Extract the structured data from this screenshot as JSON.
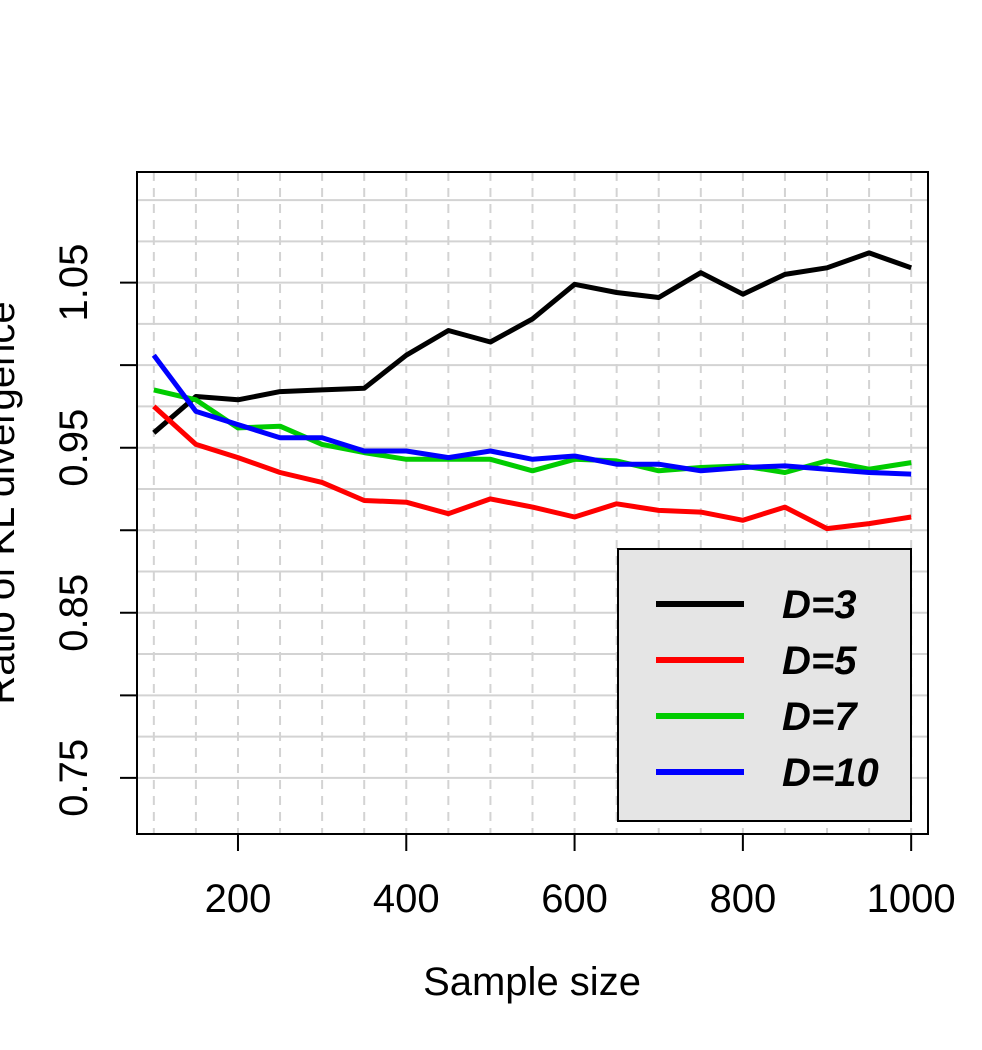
{
  "chart_data": {
    "type": "line",
    "title": "",
    "xlabel": "Sample size",
    "ylabel": "Ratio of KL divergence",
    "xlim": [
      80,
      1020
    ],
    "ylim": [
      0.716,
      1.117
    ],
    "x_ticks": [
      200,
      400,
      600,
      800,
      1000
    ],
    "x_tick_labels": [
      "200",
      "400",
      "600",
      "800",
      "1000"
    ],
    "x_minor_ticks": [
      100,
      150,
      250,
      300,
      350,
      450,
      500,
      550,
      650,
      700,
      750,
      850,
      900,
      950
    ],
    "y_ticks": [
      0.75,
      0.8,
      0.85,
      0.9,
      0.95,
      1.0,
      1.05
    ],
    "y_tick_labels": [
      "0.75",
      "",
      "0.85",
      "",
      "0.95",
      "",
      "1.05"
    ],
    "grid": true,
    "legend_position": "bottom-right",
    "x": [
      100,
      150,
      200,
      250,
      300,
      350,
      400,
      450,
      500,
      550,
      600,
      650,
      700,
      750,
      800,
      850,
      900,
      950,
      1000
    ],
    "series": [
      {
        "name": "D=3",
        "color": "#000000",
        "values": [
          0.959,
          0.981,
          0.979,
          0.984,
          0.985,
          0.986,
          1.006,
          1.021,
          1.014,
          1.028,
          1.049,
          1.044,
          1.041,
          1.056,
          1.043,
          1.055,
          1.059,
          1.068,
          1.059
        ]
      },
      {
        "name": "D=5",
        "color": "#ff0000",
        "values": [
          0.975,
          0.952,
          0.944,
          0.935,
          0.929,
          0.918,
          0.917,
          0.91,
          0.919,
          0.914,
          0.908,
          0.916,
          0.912,
          0.911,
          0.906,
          0.914,
          0.901,
          0.904,
          0.908
        ]
      },
      {
        "name": "D=7",
        "color": "#00cc00",
        "values": [
          0.985,
          0.979,
          0.962,
          0.963,
          0.952,
          0.947,
          0.943,
          0.943,
          0.943,
          0.936,
          0.943,
          0.942,
          0.936,
          0.938,
          0.939,
          0.935,
          0.942,
          0.937,
          0.941
        ]
      },
      {
        "name": "D=10",
        "color": "#0000ff",
        "values": [
          1.006,
          0.972,
          0.964,
          0.956,
          0.956,
          0.948,
          0.948,
          0.944,
          0.948,
          0.943,
          0.945,
          0.94,
          0.94,
          0.936,
          0.938,
          0.939,
          0.937,
          0.935,
          0.934
        ]
      }
    ]
  }
}
